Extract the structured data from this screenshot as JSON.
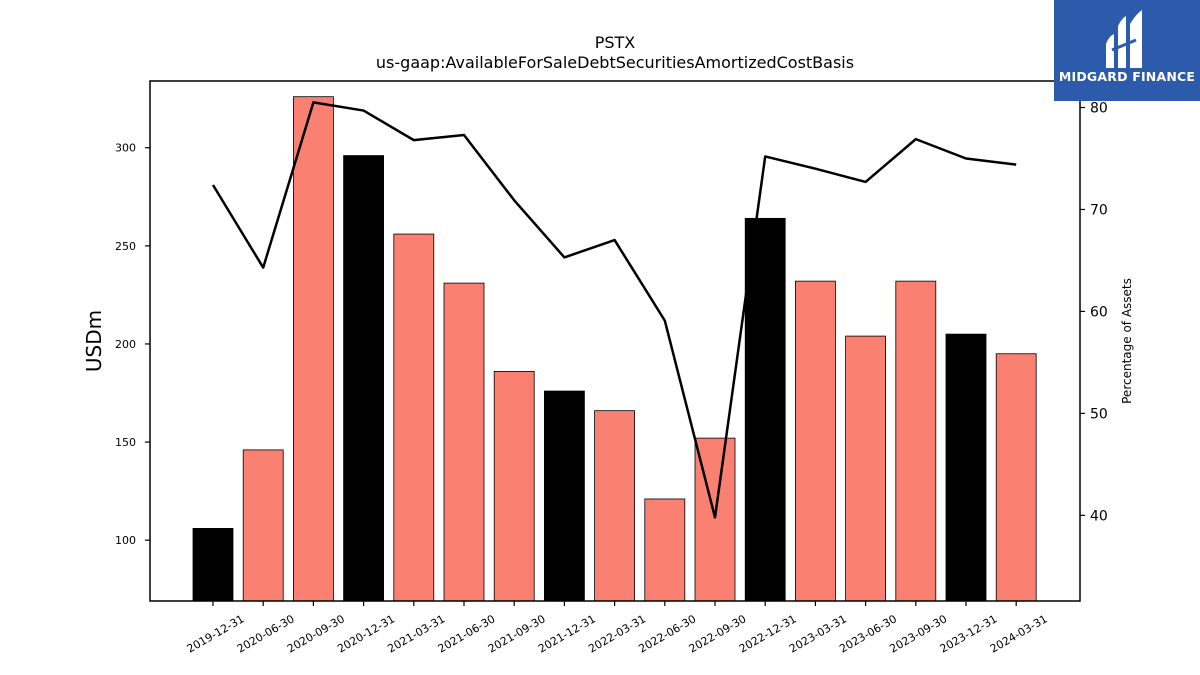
{
  "chart_data": {
    "type": "bar",
    "title": "PSTX",
    "subtitle": "us-gaap:AvailableForSaleDebtSecuritiesAmortizedCostBasis",
    "ylabel": "USDm",
    "y2label": "Percentage of Assets",
    "categories": [
      "2019-12-31",
      "2020-06-30",
      "2020-09-30",
      "2020-12-31",
      "2021-03-31",
      "2021-06-30",
      "2021-09-30",
      "2021-12-31",
      "2022-03-31",
      "2022-06-30",
      "2022-09-30",
      "2022-12-31",
      "2023-03-31",
      "2023-06-30",
      "2023-09-30",
      "2023-12-31",
      "2024-03-31"
    ],
    "series": [
      {
        "type": "bar",
        "values": [
          106,
          146,
          326,
          296,
          256,
          231,
          186,
          176,
          166,
          121,
          152,
          264,
          232,
          204,
          232,
          205,
          195
        ]
      },
      {
        "type": "line",
        "axis": "right",
        "values": [
          72.4,
          64.3,
          80.5,
          79.7,
          76.8,
          77.3,
          70.9,
          65.3,
          67.0,
          59.1,
          39.8,
          75.2,
          74.0,
          72.7,
          76.9,
          75.0,
          74.4
        ]
      }
    ],
    "bar_colors": [
      "#000000",
      "#fa8072",
      "#fa8072",
      "#000000",
      "#fa8072",
      "#fa8072",
      "#fa8072",
      "#000000",
      "#fa8072",
      "#fa8072",
      "#fa8072",
      "#000000",
      "#fa8072",
      "#fa8072",
      "#fa8072",
      "#000000",
      "#fa8072"
    ],
    "line_color": "#000000",
    "ylim": [
      69,
      334
    ],
    "y2lim": [
      31.6,
      82.6
    ],
    "yticks": [
      100,
      150,
      200,
      250,
      300
    ],
    "y2ticks": [
      40,
      50,
      60,
      70,
      80
    ],
    "grid": false,
    "legend": "none"
  },
  "logo": {
    "text": "MIDGARD FINANCE"
  }
}
